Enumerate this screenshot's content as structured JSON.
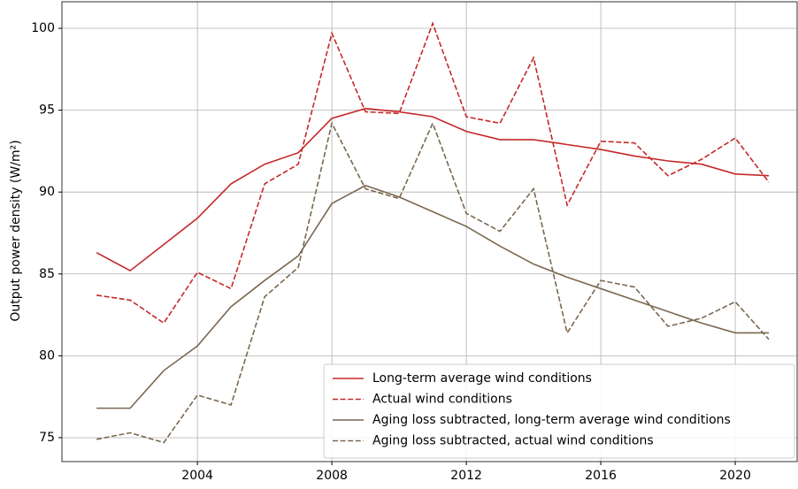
{
  "chart_data": {
    "type": "line",
    "ylabel": "Output power density (W/m²)",
    "x": [
      2001,
      2002,
      2003,
      2004,
      2005,
      2006,
      2007,
      2008,
      2009,
      2010,
      2011,
      2012,
      2013,
      2014,
      2015,
      2016,
      2017,
      2018,
      2019,
      2020,
      2021
    ],
    "series": [
      {
        "name": "Long-term average wind conditions",
        "color": "#c62828",
        "linestyle": "solid",
        "values": [
          86.3,
          85.2,
          86.8,
          88.4,
          90.5,
          91.7,
          92.4,
          94.5,
          95.1,
          94.9,
          94.6,
          93.7,
          93.2,
          93.2,
          92.9,
          92.6,
          92.2,
          91.9,
          91.7,
          91.1,
          91.0
        ]
      },
      {
        "name": "Actual wind conditions",
        "color": "#c62828",
        "linestyle": "dashed",
        "values": [
          83.7,
          83.4,
          82.0,
          85.1,
          84.1,
          90.5,
          91.7,
          99.7,
          94.9,
          94.8,
          100.3,
          94.6,
          94.2,
          98.2,
          89.2,
          93.1,
          93.0,
          91.0,
          92.0,
          93.3,
          90.6
        ]
      },
      {
        "name": "Aging loss subtracted, long-term average wind conditions",
        "color": "#7a6750",
        "linestyle": "solid",
        "values": [
          76.8,
          76.8,
          79.1,
          80.6,
          83.0,
          84.6,
          86.1,
          89.3,
          90.4,
          89.7,
          88.8,
          87.9,
          86.7,
          85.6,
          84.8,
          84.1,
          83.4,
          82.7,
          82.0,
          81.4,
          81.4
        ]
      },
      {
        "name": "Aging loss subtracted, actual wind conditions",
        "color": "#7a6750",
        "linestyle": "dashed",
        "values": [
          74.9,
          75.3,
          74.7,
          77.6,
          77.0,
          83.6,
          85.4,
          94.2,
          90.2,
          89.6,
          94.2,
          88.7,
          87.6,
          90.2,
          81.4,
          84.6,
          84.2,
          81.8,
          82.3,
          83.3,
          81.0
        ]
      }
    ],
    "xlim": [
      1999.97,
      2021.84
    ],
    "xticks": [
      2004,
      2008,
      2012,
      2016,
      2020
    ],
    "ylim": [
      73.54,
      101.62
    ],
    "yticks": [
      75,
      80,
      85,
      90,
      95,
      100
    ],
    "grid": true,
    "legend": "lower right"
  }
}
